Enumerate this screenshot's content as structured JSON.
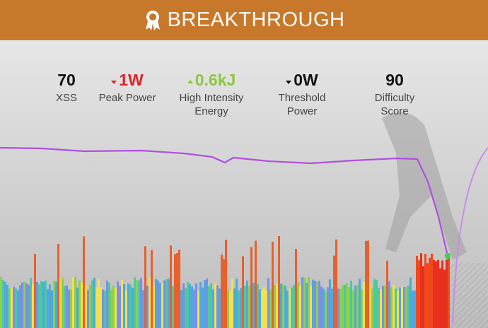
{
  "header": {
    "title": "BREAKTHROUGH"
  },
  "stats": [
    {
      "value": "70",
      "label": "XSS",
      "color": "#111111"
    },
    {
      "value": "1W",
      "label": "Peak Power",
      "color": "#d9262c",
      "trend": "down"
    },
    {
      "value": "0.6kJ",
      "label": "High Intensity Energy",
      "color": "#8bc63f",
      "trend": "up"
    },
    {
      "value": "0W",
      "label": "Threshold Power",
      "color": "#111111",
      "trend": "down"
    },
    {
      "value": "90",
      "label": "Difficulty Score",
      "color": "#111111"
    }
  ]
}
